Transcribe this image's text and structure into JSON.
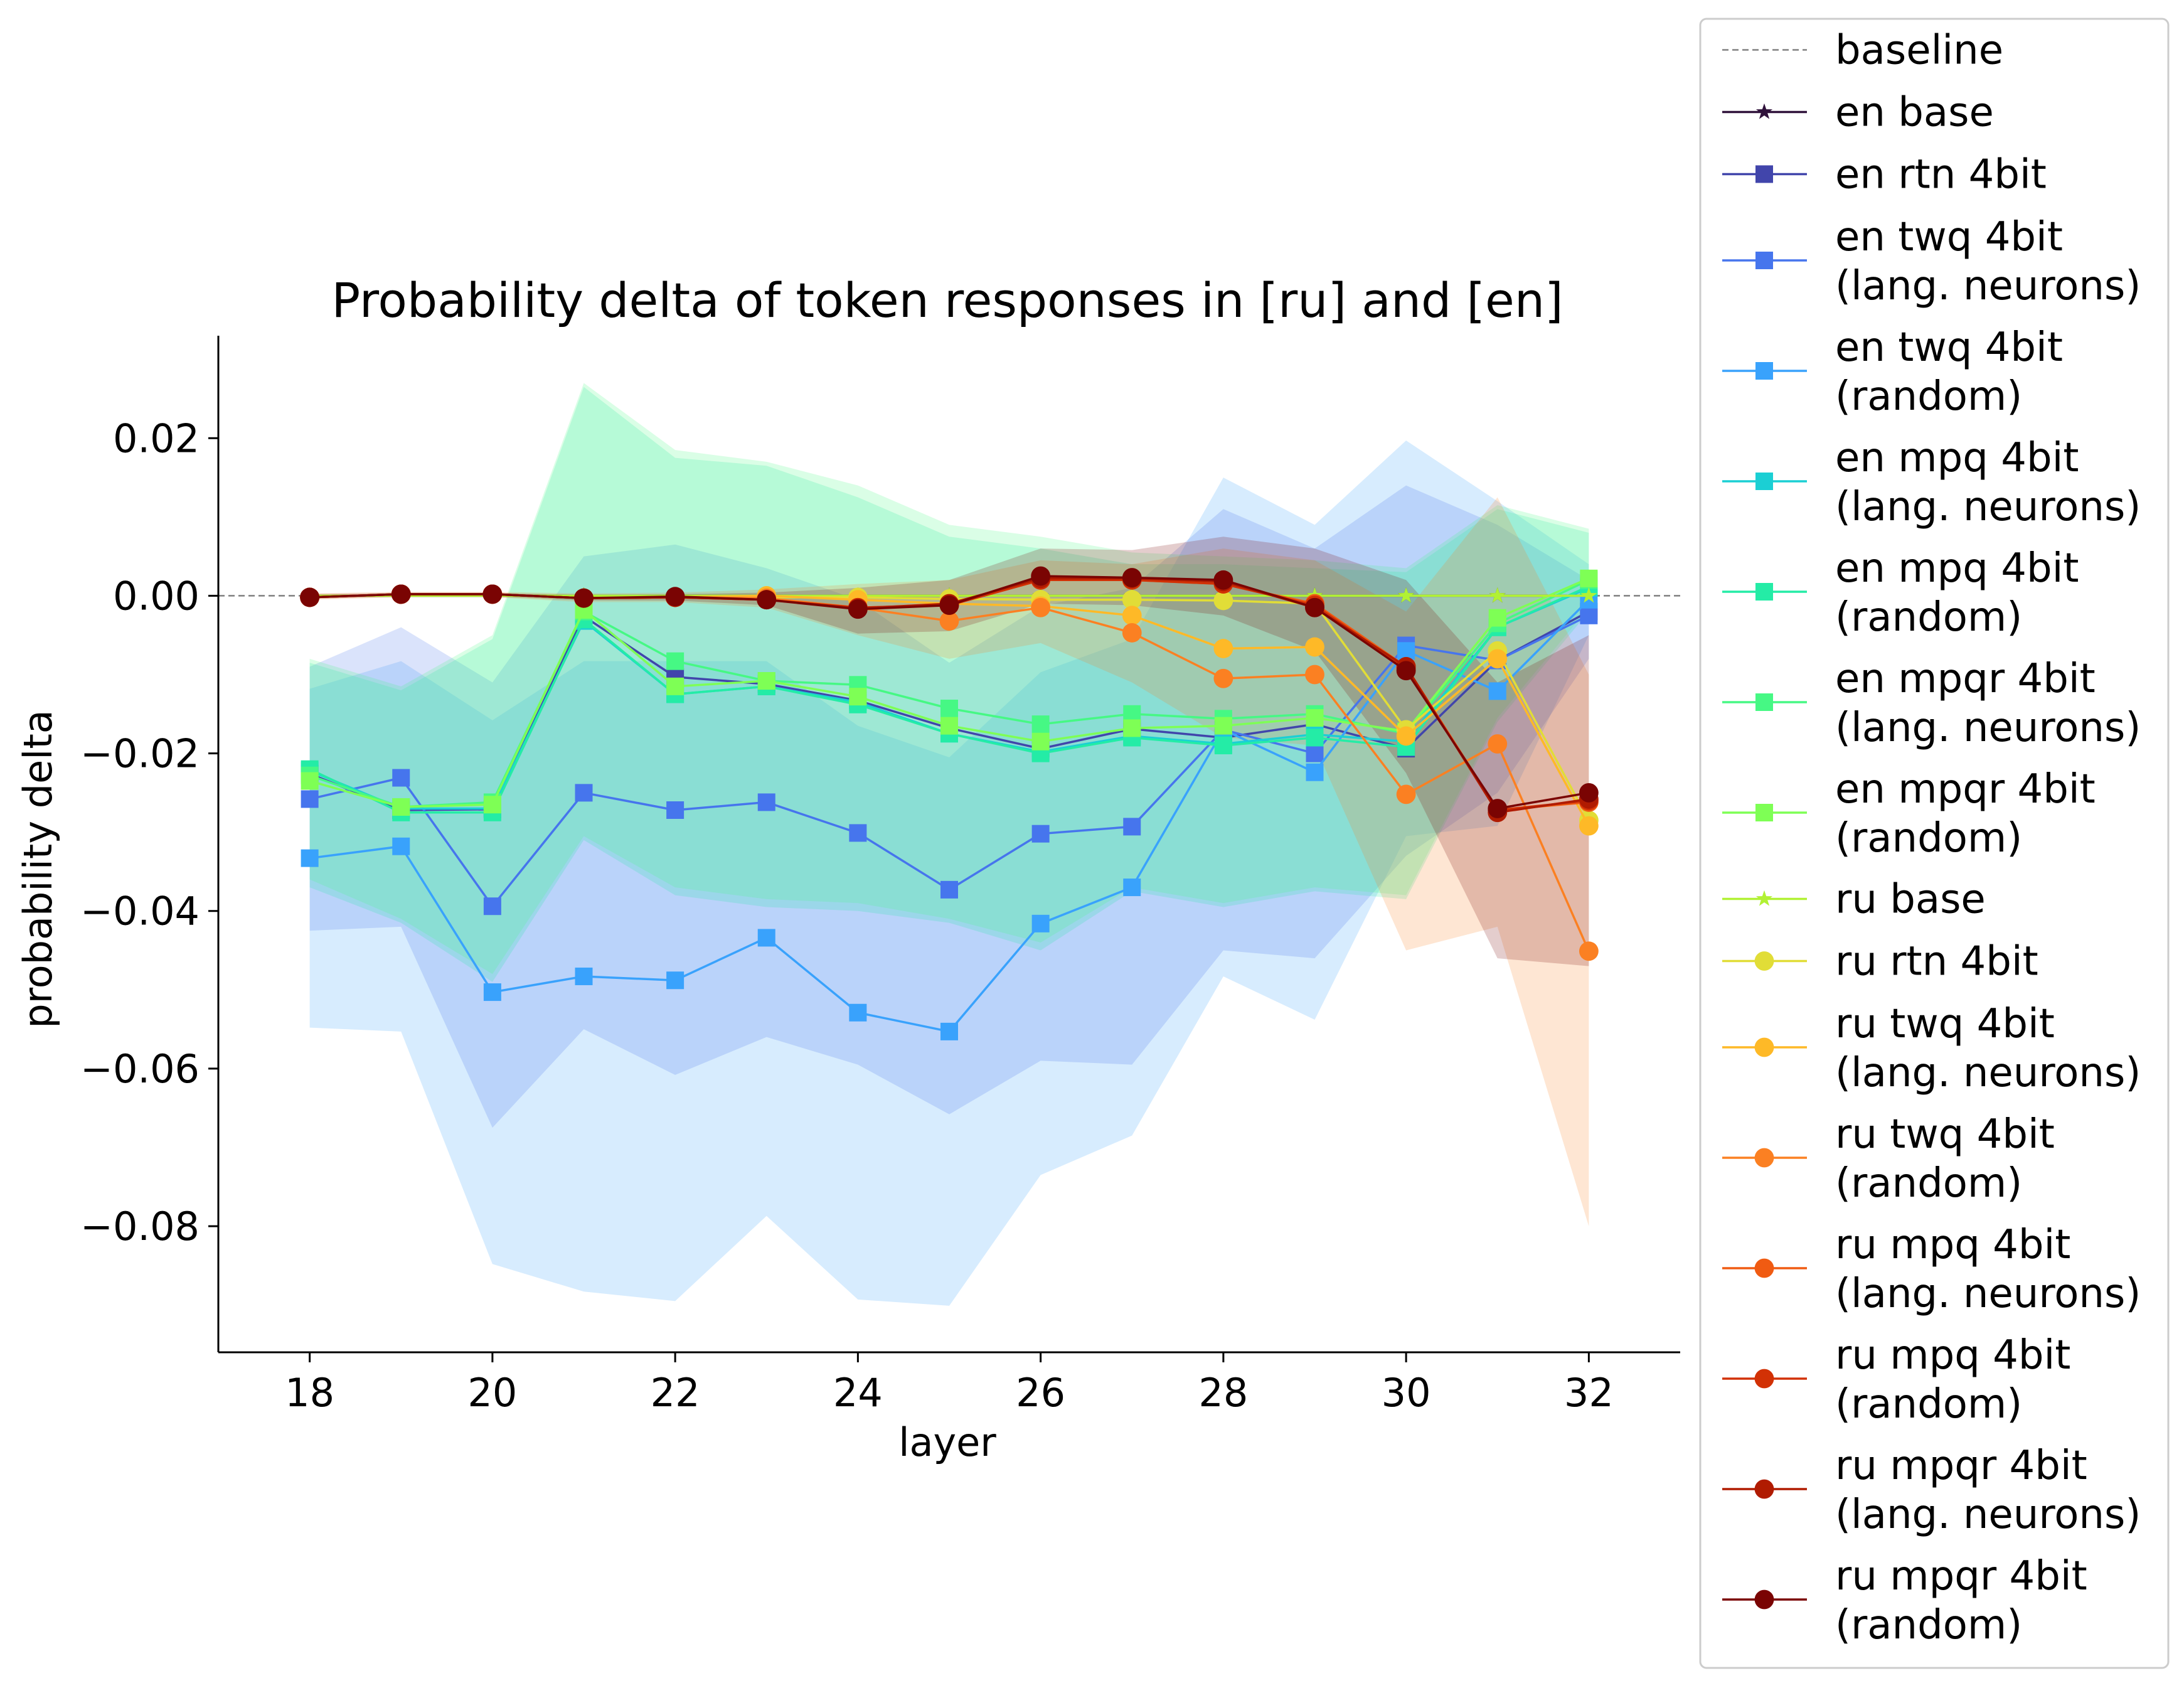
{
  "chart_data": {
    "type": "line",
    "title": "Probability delta of token responses in [ru] and [en]",
    "xlabel": "layer",
    "ylabel": "probability delta",
    "xlim": [
      17,
      33
    ],
    "ylim": [
      -0.096,
      0.033
    ],
    "x_ticks": [
      18,
      20,
      22,
      24,
      26,
      28,
      30,
      32
    ],
    "x_tick_labels": [
      "18",
      "20",
      "22",
      "24",
      "26",
      "28",
      "30",
      "32"
    ],
    "y_ticks": [
      0.02,
      0.0,
      -0.02,
      -0.04,
      -0.06,
      -0.08
    ],
    "y_tick_labels": [
      "0.02",
      "0.00",
      "−0.02",
      "−0.04",
      "−0.06",
      "−0.08"
    ],
    "grid": false,
    "legend_position": "outside-right",
    "baseline": {
      "name": "baseline",
      "value": 0.0,
      "color": "#808080"
    },
    "x": [
      18,
      19,
      20,
      21,
      22,
      23,
      24,
      25,
      26,
      27,
      28,
      29,
      30,
      31,
      32
    ],
    "series": [
      {
        "name": "en base",
        "color": "#30123b",
        "marker": "star",
        "values": [
          0,
          0,
          0,
          0,
          0,
          0,
          0,
          0,
          0,
          0,
          0,
          0,
          0,
          0,
          0
        ]
      },
      {
        "name": "en rtn 4bit",
        "color": "#4145ab",
        "marker": "square",
        "values": [
          -0.0226,
          -0.0272,
          -0.0271,
          -0.0026,
          -0.0103,
          -0.0112,
          -0.0133,
          -0.0168,
          -0.0194,
          -0.0169,
          -0.018,
          -0.0163,
          -0.0194,
          -0.0082,
          -0.002
        ]
      },
      {
        "name": "en twq 4bit\n(lang. neurons)",
        "color": "#4675ed",
        "marker": "square",
        "values": [
          -0.0258,
          -0.0231,
          -0.0394,
          -0.025,
          -0.0272,
          -0.0262,
          -0.0301,
          -0.0373,
          -0.0302,
          -0.0293,
          -0.017,
          -0.02,
          -0.0063,
          -0.0082,
          -0.0025
        ]
      },
      {
        "name": "en twq 4bit\n(random)",
        "color": "#39a2fc",
        "marker": "square",
        "values": [
          -0.0333,
          -0.0318,
          -0.0503,
          -0.0483,
          -0.0488,
          -0.0434,
          -0.0529,
          -0.0553,
          -0.0416,
          -0.037,
          -0.017,
          -0.0224,
          -0.007,
          -0.0121,
          -0.0005
        ]
      },
      {
        "name": "en mpq 4bit\n(lang. neurons)",
        "color": "#1bcfd4",
        "marker": "square",
        "values": [
          -0.0222,
          -0.027,
          -0.027,
          -0.0032,
          -0.0125,
          -0.0115,
          -0.0135,
          -0.0175,
          -0.0198,
          -0.0178,
          -0.0188,
          -0.0176,
          -0.0185,
          -0.004,
          0.001
        ]
      },
      {
        "name": "en mpq 4bit\n(random)",
        "color": "#24eca6",
        "marker": "square",
        "values": [
          -0.022,
          -0.0275,
          -0.0275,
          -0.003,
          -0.0125,
          -0.0115,
          -0.0138,
          -0.0175,
          -0.02,
          -0.018,
          -0.019,
          -0.018,
          -0.0192,
          -0.004,
          0.0012
        ]
      },
      {
        "name": "en mpqr 4bit\n(lang. neurons)",
        "color": "#46f884",
        "marker": "square",
        "values": [
          -0.0228,
          -0.0268,
          -0.0262,
          -0.002,
          -0.0083,
          -0.0108,
          -0.0113,
          -0.0143,
          -0.0163,
          -0.015,
          -0.0156,
          -0.015,
          -0.0175,
          -0.0035,
          0.002
        ]
      },
      {
        "name": "en mpqr 4bit\n(random)",
        "color": "#7eff55",
        "marker": "square",
        "values": [
          -0.0235,
          -0.0268,
          -0.0265,
          -0.0018,
          -0.0115,
          -0.0108,
          -0.0128,
          -0.0165,
          -0.0185,
          -0.0168,
          -0.0165,
          -0.0155,
          -0.0172,
          -0.0028,
          0.0022
        ]
      },
      {
        "name": "ru base",
        "color": "#b1f134",
        "marker": "star",
        "values": [
          0,
          0,
          0,
          0,
          0,
          0,
          0,
          0,
          0,
          0,
          0,
          0,
          0,
          0,
          0
        ]
      },
      {
        "name": "ru rtn 4bit",
        "color": "#e1dd37",
        "marker": "circle",
        "values": [
          -0.0002,
          0.0002,
          0.0002,
          -0.0003,
          -0.0002,
          -0.0002,
          -0.0002,
          -0.0004,
          -0.0005,
          -0.0005,
          -0.0006,
          -0.001,
          -0.017,
          -0.007,
          -0.0285
        ]
      },
      {
        "name": "ru twq 4bit\n(lang. neurons)",
        "color": "#feb927",
        "marker": "circle",
        "values": [
          -0.0002,
          0.0002,
          0.0002,
          -0.0003,
          -0.0002,
          0.0,
          -0.0005,
          -0.001,
          -0.0013,
          -0.0025,
          -0.0067,
          -0.0065,
          -0.0178,
          -0.008,
          -0.0292
        ]
      },
      {
        "name": "ru twq 4bit\n(random)",
        "color": "#fb8022",
        "marker": "circle",
        "values": [
          -0.0002,
          0.0002,
          0.0002,
          -0.0003,
          -0.0002,
          -0.0003,
          -0.0015,
          -0.0032,
          -0.0015,
          -0.0047,
          -0.0105,
          -0.01,
          -0.0252,
          -0.0188,
          -0.0451
        ]
      },
      {
        "name": "ru mpq 4bit\n(lang. neurons)",
        "color": "#f05b12",
        "marker": "circle",
        "values": [
          -0.0002,
          0.0002,
          0.0002,
          -0.0003,
          -0.0002,
          -0.0005,
          -0.0015,
          -0.0012,
          0.002,
          0.002,
          0.0015,
          -0.001,
          -0.009,
          -0.0272,
          -0.0262
        ]
      },
      {
        "name": "ru mpq 4bit\n(random)",
        "color": "#d23105",
        "marker": "circle",
        "values": [
          -0.0002,
          0.0002,
          0.0002,
          -0.0003,
          -0.0002,
          -0.0005,
          -0.0015,
          -0.0012,
          0.002,
          0.002,
          0.0015,
          -0.0012,
          -0.0092,
          -0.0272,
          -0.026
        ]
      },
      {
        "name": "ru mpqr 4bit\n(lang. neurons)",
        "color": "#b01b01",
        "marker": "circle",
        "values": [
          -0.0002,
          0.0002,
          0.0002,
          -0.0003,
          -0.0002,
          -0.0005,
          -0.0016,
          -0.001,
          0.0022,
          0.0022,
          0.0018,
          -0.0015,
          -0.009,
          -0.0275,
          -0.0258
        ]
      },
      {
        "name": "ru mpqr 4bit\n(random)",
        "color": "#7a0403",
        "marker": "circle",
        "values": [
          -0.0002,
          0.0002,
          0.0002,
          -0.0003,
          -0.0001,
          -0.0005,
          -0.0017,
          -0.0012,
          0.0025,
          0.0023,
          0.002,
          -0.0015,
          -0.0095,
          -0.027,
          -0.025
        ]
      }
    ],
    "bands": [
      {
        "color": "#39a2fc",
        "lower": [
          -0.0548,
          -0.0553,
          -0.0848,
          -0.0883,
          -0.0895,
          -0.0787,
          -0.0893,
          -0.0901,
          -0.0735,
          -0.0685,
          -0.0483,
          -0.0538,
          -0.0305,
          -0.0292,
          -0.005
        ],
        "upper": [
          -0.0118,
          -0.0083,
          -0.0158,
          -0.0083,
          -0.0083,
          -0.0083,
          -0.0165,
          -0.0205,
          -0.0097,
          -0.0055,
          0.015,
          0.009,
          0.0197,
          0.012,
          0.004
        ]
      },
      {
        "color": "#4675ed",
        "lower": [
          -0.0425,
          -0.042,
          -0.0675,
          -0.055,
          -0.0608,
          -0.056,
          -0.0595,
          -0.0658,
          -0.059,
          -0.0595,
          -0.045,
          -0.046,
          -0.033,
          -0.025,
          -0.008
        ],
        "upper": [
          -0.009,
          -0.004,
          -0.011,
          0.005,
          0.0065,
          0.0035,
          -0.0005,
          -0.0085,
          -0.0013,
          0.001,
          0.011,
          0.006,
          0.014,
          0.009,
          0.002
        ]
      },
      {
        "color": "#24eca6",
        "lower": [
          -0.037,
          -0.0415,
          -0.049,
          -0.031,
          -0.038,
          -0.0395,
          -0.04,
          -0.0415,
          -0.045,
          -0.0375,
          -0.0395,
          -0.0375,
          -0.0385,
          -0.016,
          -0.002
        ],
        "upper": [
          -0.0085,
          -0.012,
          -0.0055,
          0.0265,
          0.0175,
          0.0165,
          0.0125,
          0.0075,
          0.006,
          0.004,
          0.004,
          0.0035,
          0.003,
          0.011,
          0.008
        ]
      },
      {
        "color": "#46f884",
        "lower": [
          -0.036,
          -0.041,
          -0.048,
          -0.0305,
          -0.037,
          -0.0385,
          -0.039,
          -0.041,
          -0.044,
          -0.037,
          -0.039,
          -0.037,
          -0.038,
          -0.0155,
          -0.0015
        ],
        "upper": [
          -0.008,
          -0.0115,
          -0.005,
          0.027,
          0.0185,
          0.017,
          0.014,
          0.009,
          0.0075,
          0.0055,
          0.005,
          0.0045,
          0.0035,
          0.0115,
          0.0085
        ]
      },
      {
        "color": "#fb8022",
        "lower": [
          -0.0005,
          -0.0002,
          -0.0002,
          -0.0008,
          -0.0008,
          -0.0015,
          -0.005,
          -0.008,
          -0.006,
          -0.011,
          -0.018,
          -0.019,
          -0.045,
          -0.042,
          -0.08
        ],
        "upper": [
          0.0003,
          0.0005,
          0.0005,
          0.0003,
          0.0004,
          0.0008,
          0.0015,
          0.002,
          0.0045,
          0.004,
          0.006,
          0.0045,
          -0.002,
          0.0125,
          -0.01
        ]
      },
      {
        "color": "#b01b01",
        "lower": [
          -0.0004,
          -0.0001,
          -0.0001,
          -0.0006,
          -0.0006,
          -0.0012,
          -0.0045,
          -0.0045,
          -0.0005,
          -0.001,
          -0.0025,
          -0.0075,
          -0.023,
          -0.047,
          -0.048
        ]
      },
      {
        "color": "#7a0403",
        "lower": [
          -0.0004,
          -0.0001,
          -0.0001,
          -0.0006,
          -0.0006,
          -0.0012,
          -0.0048,
          -0.0045,
          -0.001,
          -0.0012,
          -0.0025,
          -0.007,
          -0.0225,
          -0.046,
          -0.047
        ],
        "upper": [
          0.0002,
          0.0004,
          0.0004,
          0.0001,
          0.0002,
          0.0004,
          0.001,
          0.002,
          0.006,
          0.0058,
          0.0075,
          0.006,
          0.002,
          -0.011,
          -0.005
        ]
      }
    ]
  }
}
